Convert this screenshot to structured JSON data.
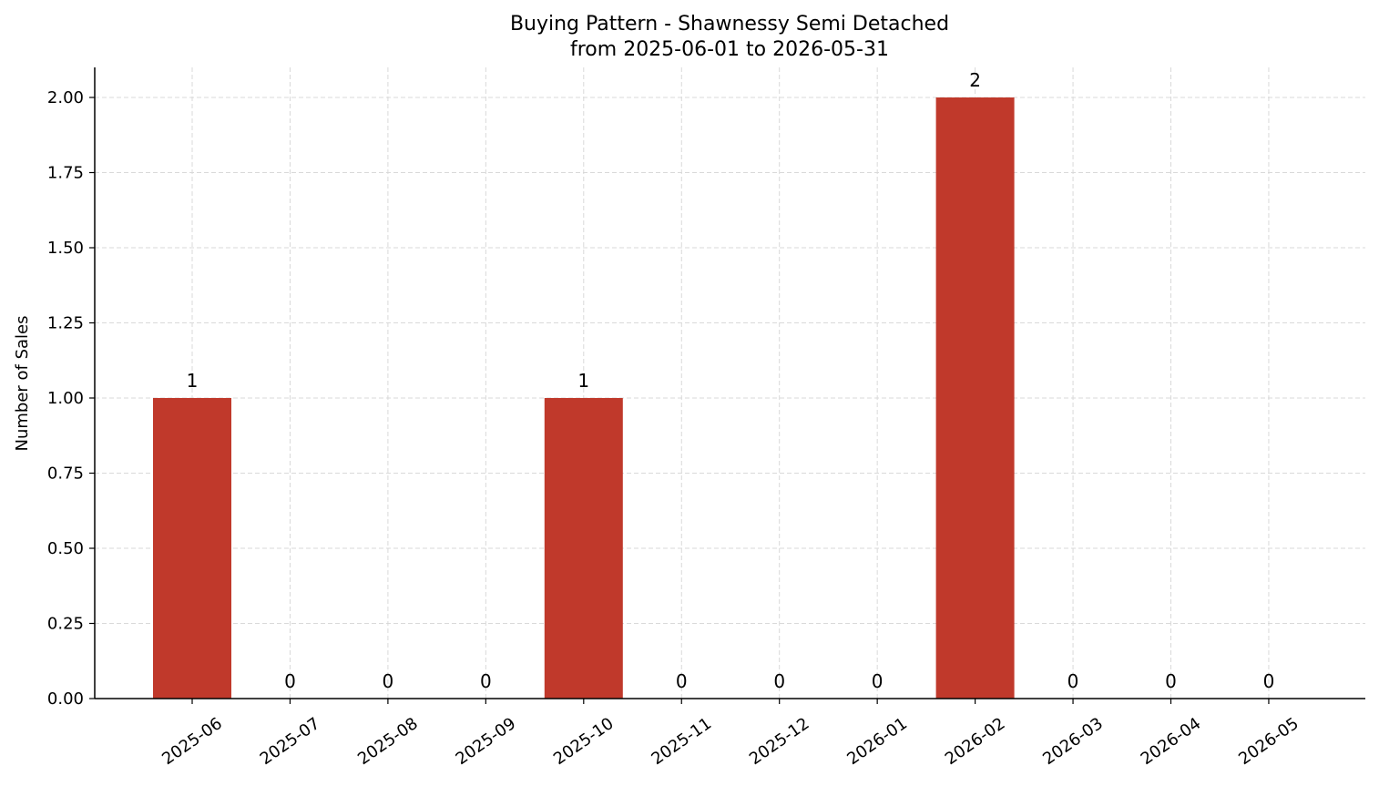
{
  "chart_data": {
    "type": "bar",
    "title": "Buying Pattern - Shawnessy Semi Detached",
    "subtitle": "from 2025-06-01 to 2026-05-31",
    "xlabel": "",
    "ylabel": "Number of Sales",
    "categories": [
      "2025-06",
      "2025-07",
      "2025-08",
      "2025-09",
      "2025-10",
      "2025-11",
      "2025-12",
      "2026-01",
      "2026-02",
      "2026-03",
      "2026-04",
      "2026-05"
    ],
    "values": [
      1,
      0,
      0,
      0,
      1,
      0,
      0,
      0,
      2,
      0,
      0,
      0
    ],
    "data_labels": [
      "1",
      "0",
      "0",
      "0",
      "1",
      "0",
      "0",
      "0",
      "2",
      "0",
      "0",
      "0"
    ],
    "ylim": [
      0,
      2.1
    ],
    "yticks": [
      "0.00",
      "0.25",
      "0.50",
      "0.75",
      "1.00",
      "1.25",
      "1.50",
      "1.75",
      "2.00"
    ],
    "grid": true,
    "bar_color": "#c0392b"
  }
}
